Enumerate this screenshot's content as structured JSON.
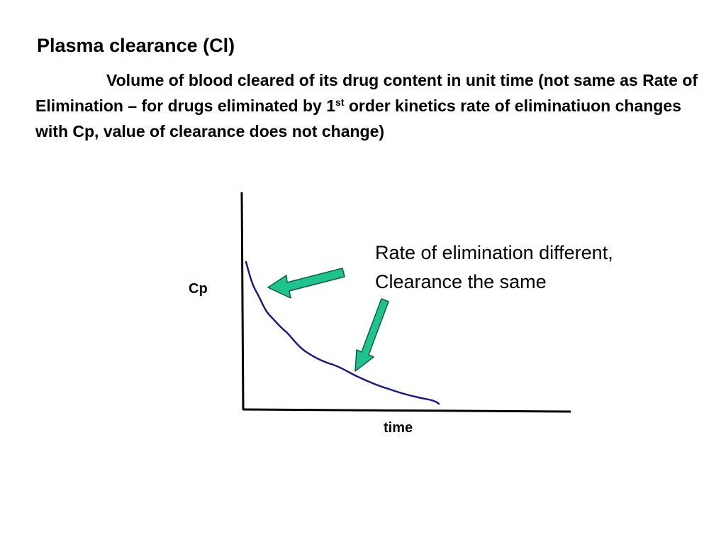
{
  "slide": {
    "title": "Plasma clearance (Cl)",
    "definition": {
      "before_sup": "Volume of blood cleared of its drug content in unit time (not same as Rate of Elimination – for drugs eliminated by 1",
      "sup": "st",
      "after_sup": " order kinetics rate of eliminatiuon changes with Cp, value of clearance does not change)"
    }
  },
  "graph": {
    "y_axis_label": "Cp",
    "x_axis_label": "time",
    "curve": "first-order exponential decay of Cp over time",
    "annotation_line1": "Rate of elimination different,",
    "annotation_line2": "Clearance the same",
    "arrow_color": "#1ec48e",
    "curve_color": "#1a1a8c",
    "axis_color": "#000000"
  }
}
